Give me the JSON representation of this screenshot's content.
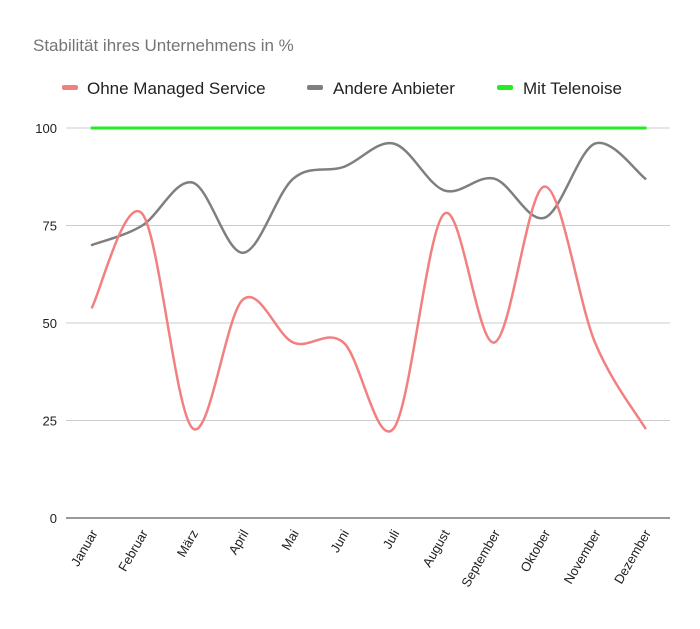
{
  "chart_data": {
    "type": "line",
    "title": "Stabilität ihres Unternehmens in %",
    "xlabel": "",
    "ylabel": "",
    "ylim": [
      0,
      100
    ],
    "yticks": [
      0,
      25,
      50,
      75,
      100
    ],
    "grid": true,
    "legend_position": "top",
    "categories": [
      "Januar",
      "Februar",
      "März",
      "April",
      "Mai",
      "Juni",
      "Juli",
      "August",
      "September",
      "Oktober",
      "November",
      "Dezember"
    ],
    "series": [
      {
        "name": "Ohne Managed Service",
        "color": "#f28080",
        "values": [
          54,
          78,
          23,
          56,
          45,
          45,
          23,
          78,
          45,
          85,
          45,
          23
        ]
      },
      {
        "name": "Andere Anbieter",
        "color": "#7f7f7f",
        "values": [
          70,
          75,
          86,
          68,
          87,
          90,
          96,
          84,
          87,
          77,
          96,
          87
        ]
      },
      {
        "name": "Mit Telenoise",
        "color": "#22ee22",
        "values": [
          100,
          100,
          100,
          100,
          100,
          100,
          100,
          100,
          100,
          100,
          100,
          100
        ]
      }
    ]
  }
}
